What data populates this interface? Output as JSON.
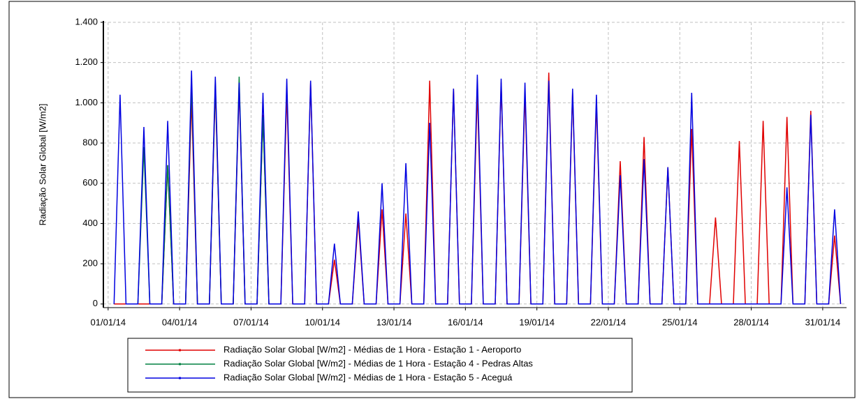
{
  "chart_data": {
    "type": "line",
    "ylabel": "Radiação Solar Global [W/m2]",
    "x": [
      0.25,
      0.5,
      0.75,
      1.25,
      1.5,
      1.75,
      2.25,
      2.5,
      2.75,
      3.25,
      3.5,
      3.75,
      4.25,
      4.5,
      4.75,
      5.25,
      5.5,
      5.75,
      6.25,
      6.5,
      6.75,
      7.25,
      7.5,
      7.75,
      8.25,
      8.5,
      8.75,
      9.25,
      9.5,
      9.75,
      10.25,
      10.5,
      10.75,
      11.25,
      11.5,
      11.75,
      12.25,
      12.5,
      12.75,
      13.25,
      13.5,
      13.75,
      14.25,
      14.5,
      14.75,
      15.25,
      15.5,
      15.75,
      16.25,
      16.5,
      16.75,
      17.25,
      17.5,
      17.75,
      18.25,
      18.5,
      18.75,
      19.25,
      19.5,
      19.75,
      20.25,
      20.5,
      20.75,
      21.25,
      21.5,
      21.75,
      22.25,
      22.5,
      22.75,
      23.25,
      23.5,
      23.75,
      24.25,
      24.5,
      24.75,
      25.25,
      25.5,
      25.75,
      26.25,
      26.5,
      26.75,
      27.25,
      27.5,
      27.75,
      28.25,
      28.5,
      28.75,
      29.25,
      29.5,
      29.75,
      30.25,
      30.5,
      30.75
    ],
    "series": [
      {
        "name": "Radiação Solar Global [W/m2] - Médias de 1 Hora - Estação 1 - Aeroporto",
        "color": "#e00000",
        "values": [
          0,
          0,
          0,
          0,
          0,
          0,
          0,
          690,
          0,
          0,
          1020,
          0,
          0,
          1070,
          0,
          0,
          1080,
          0,
          0,
          940,
          0,
          0,
          1050,
          0,
          0,
          1100,
          0,
          0,
          220,
          0,
          0,
          420,
          0,
          0,
          470,
          0,
          0,
          450,
          0,
          0,
          1110,
          0,
          0,
          1070,
          0,
          0,
          1060,
          0,
          0,
          1100,
          0,
          0,
          1050,
          0,
          0,
          1150,
          0,
          0,
          1050,
          0,
          0,
          1000,
          0,
          0,
          710,
          0,
          0,
          830,
          0,
          0,
          680,
          0,
          0,
          870,
          0,
          0,
          430,
          0,
          0,
          810,
          0,
          0,
          910,
          0,
          0,
          930,
          0,
          0,
          960,
          0,
          0,
          340,
          0
        ]
      },
      {
        "name": "Radiação Solar Global [W/m2] - Médias de 1 Hora - Estação 4 - Pedras Altas",
        "color": "#008040",
        "values": [
          null,
          null,
          null,
          0,
          780,
          0,
          0,
          690,
          0,
          0,
          1100,
          0,
          0,
          1100,
          0,
          0,
          1130,
          0,
          0,
          930,
          0,
          null,
          null,
          null,
          null,
          null,
          null,
          null,
          null,
          null,
          null,
          null,
          null,
          null,
          null,
          null,
          null,
          null,
          null,
          null,
          null,
          null,
          null,
          null,
          null,
          null,
          null,
          null,
          null,
          null,
          null,
          null,
          null,
          null,
          null,
          null,
          null,
          null,
          null,
          null,
          null,
          null,
          null,
          null,
          null,
          null,
          null,
          null,
          null,
          null,
          null,
          null,
          null,
          null,
          null,
          null,
          null,
          null,
          null,
          null,
          null,
          null,
          null,
          null,
          null,
          null,
          null,
          null,
          null,
          null,
          null,
          null,
          null
        ]
      },
      {
        "name": "Radiação Solar Global [W/m2] - Médias de 1 Hora - Estação 5 - Aceguá",
        "color": "#0000e0",
        "values": [
          0,
          1040,
          0,
          0,
          880,
          0,
          0,
          910,
          0,
          0,
          1160,
          0,
          0,
          1130,
          0,
          0,
          1100,
          0,
          0,
          1050,
          0,
          0,
          1120,
          0,
          0,
          1110,
          0,
          0,
          300,
          0,
          0,
          460,
          0,
          0,
          600,
          0,
          0,
          700,
          0,
          0,
          900,
          0,
          0,
          1070,
          0,
          0,
          1140,
          0,
          0,
          1120,
          0,
          0,
          1100,
          0,
          0,
          1110,
          0,
          0,
          1070,
          0,
          0,
          1040,
          0,
          0,
          640,
          0,
          0,
          720,
          0,
          0,
          680,
          0,
          0,
          1050,
          0,
          0,
          0,
          0,
          0,
          0,
          0,
          0,
          0,
          0,
          0,
          580,
          0,
          0,
          940,
          0,
          0,
          470,
          0
        ]
      }
    ],
    "xlim": [
      -0.2,
      31.0
    ],
    "xticks": [
      {
        "value": 0,
        "label": "01/01/14"
      },
      {
        "value": 3,
        "label": "04/01/14"
      },
      {
        "value": 6,
        "label": "07/01/14"
      },
      {
        "value": 9,
        "label": "10/01/14"
      },
      {
        "value": 12,
        "label": "13/01/14"
      },
      {
        "value": 15,
        "label": "16/01/14"
      },
      {
        "value": 18,
        "label": "19/01/14"
      },
      {
        "value": 21,
        "label": "22/01/14"
      },
      {
        "value": 24,
        "label": "25/01/14"
      },
      {
        "value": 27,
        "label": "28/01/14"
      },
      {
        "value": 30,
        "label": "31/01/14"
      }
    ],
    "ylim": [
      -18,
      1400
    ],
    "yticks": [
      0,
      {
        "value": 200,
        "label": "200"
      },
      400,
      600,
      800,
      {
        "value": 1000,
        "label": "1.000"
      },
      {
        "value": 1200,
        "label": "1.200"
      },
      {
        "value": 1400,
        "label": "1.400"
      }
    ],
    "grid": true,
    "legend": "bottom"
  }
}
